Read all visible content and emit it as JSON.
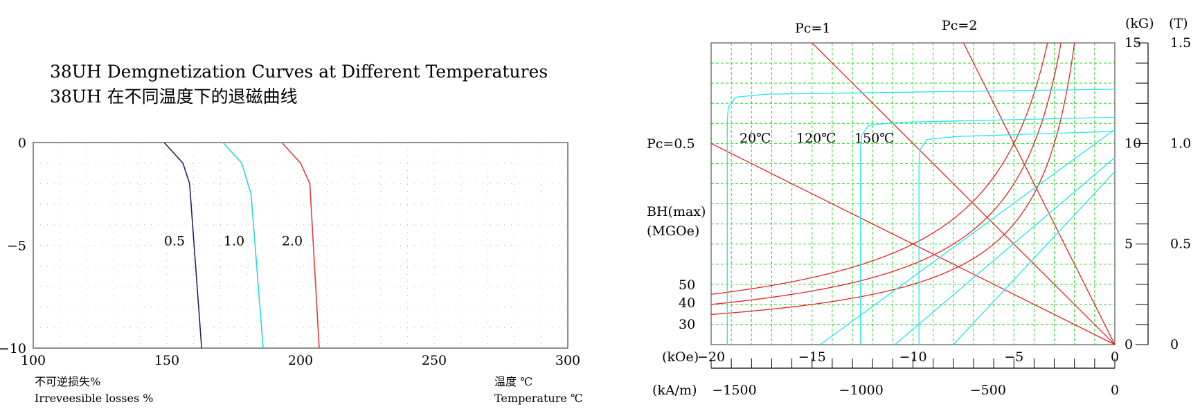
{
  "left_chart_data": {
    "type": "line",
    "title_line1": "38UH Demgnetization Curves at Different Temperatures",
    "title_line2": "38UH 在不同温度下的退磁曲线",
    "xlabel_cn": "温度 ℃",
    "xlabel_en": "Temperature ℃",
    "ylabel_cn": "不可逆损失%",
    "ylabel_en": "Irreveesible losses %",
    "xlim": [
      100,
      300
    ],
    "ylim": [
      -10,
      0
    ],
    "x_ticks": [
      "100",
      "150",
      "200",
      "250",
      "300"
    ],
    "y_ticks": [
      "0",
      "−5",
      "−10"
    ],
    "grid": "dotted",
    "series": [
      {
        "name": "0.5",
        "color": "#2a1f5a",
        "x": [
          149,
          156,
          158.5,
          163
        ],
        "y": [
          0,
          -1.0,
          -2.0,
          -10
        ]
      },
      {
        "name": "1.0",
        "color": "#22d8df",
        "x": [
          171,
          178,
          181.5,
          186
        ],
        "y": [
          0,
          -1.0,
          -2.5,
          -10
        ]
      },
      {
        "name": "2.0",
        "color": "#e33a3a",
        "x": [
          193,
          200,
          203.5,
          207
        ],
        "y": [
          0,
          -1.0,
          -2.0,
          -10
        ]
      }
    ]
  },
  "right_chart_data": {
    "type": "line",
    "x_top_axis_label": "(kOe)",
    "x_top_ticks": [
      "−20",
      "−15",
      "−10",
      "−5",
      "0"
    ],
    "x_top_values": [
      -20,
      -15,
      -10,
      -5,
      0
    ],
    "x_bottom_axis_label": "(kA/m)",
    "x_bottom_ticks": [
      "−1500",
      "−1000",
      "−500",
      "0"
    ],
    "x_bottom_values": [
      -1500,
      -1000,
      -500,
      0
    ],
    "y_left_ticks": [
      "0",
      "5",
      "10",
      "15"
    ],
    "y_right_unit_kg": "(kG)",
    "y_right_unit_t": "(T)",
    "y_right_ticks_t": [
      "0",
      "0.5",
      "1.0",
      "1.5"
    ],
    "ylim_kG": [
      0,
      15
    ],
    "xlim_kOe": [
      -20,
      0
    ],
    "bhmax_label_1": "BH(max)",
    "bhmax_label_2": "(MGOe)",
    "bhmax_values": [
      "50",
      "40",
      "30"
    ],
    "pc_labels": [
      "Pc=0.5",
      "Pc=1",
      "Pc=2"
    ],
    "temp_labels": [
      "20℃",
      "120℃",
      "150℃"
    ],
    "grid": "dashed green",
    "colors": {
      "grid": "#22d822",
      "b_curve": "#22e6ee",
      "red": "#e82020"
    },
    "permeance_lines": [
      {
        "name": "Pc=0.5",
        "x": [
          0,
          -20
        ],
        "y": [
          0,
          10
        ]
      },
      {
        "name": "Pc=1",
        "x": [
          0,
          -15
        ],
        "y": [
          0,
          15
        ]
      },
      {
        "name": "Pc=2",
        "x": [
          0,
          -7.5
        ],
        "y": [
          0,
          15
        ]
      }
    ],
    "demag_B": [
      {
        "name": "20℃",
        "Br": 12.7,
        "Hk": -19.5
      },
      {
        "name": "120℃",
        "Br": 11.3,
        "Hk": -12.9
      },
      {
        "name": "150℃",
        "Br": 10.6,
        "Hk": -10.0
      }
    ],
    "bh_hyperbolas_MGOe": [
      30,
      40,
      50
    ]
  }
}
